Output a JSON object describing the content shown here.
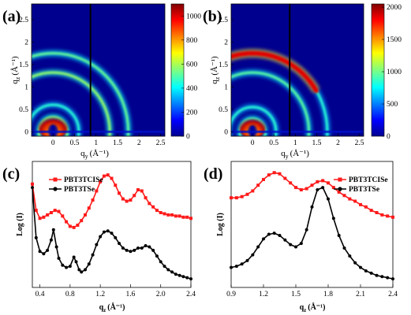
{
  "colors": {
    "red_series": "#ff1a1a",
    "black_series": "#000000",
    "map_background": "#00008f"
  },
  "chart_data": [
    {
      "panel": "(a)",
      "type": "heatmap",
      "xlabel": "q",
      "xlabel_sub": "y",
      "xlabel_unit": "(Å⁻¹)",
      "ylabel": "q",
      "ylabel_sub": "z",
      "ylabel_unit": "(Å⁻¹)",
      "xlim": [
        -0.5,
        2.6
      ],
      "ylim": [
        -0.1,
        2.85
      ],
      "xticks": [
        "0",
        "0.5",
        "1",
        "1.5",
        "2",
        "2.5"
      ],
      "yticks": [
        "0",
        "0.5",
        "1",
        "1.5",
        "2",
        "2.5"
      ],
      "colorbar_range": [
        0,
        1100
      ],
      "colorbar_ticks": [
        "0",
        "200",
        "400",
        "600",
        "800",
        "1000"
      ],
      "colormap": "jet",
      "detector_gap_qy": 0.87,
      "features": [
        {
          "kind": "ring",
          "q": 0.33,
          "intensity": 0.45
        },
        {
          "kind": "ring",
          "q": 0.6,
          "intensity": 0.3
        },
        {
          "kind": "ring",
          "q": 1.32,
          "intensity": 0.5
        },
        {
          "kind": "ring",
          "q": 1.75,
          "intensity": 0.42
        },
        {
          "kind": "lobe",
          "q": 0.33,
          "intensity": 1.0
        }
      ]
    },
    {
      "panel": "(b)",
      "type": "heatmap",
      "xlabel": "q",
      "xlabel_sub": "y",
      "xlabel_unit": "(Å⁻¹)",
      "ylabel": "q",
      "ylabel_sub": "z",
      "ylabel_unit": "(Å⁻¹)",
      "xlim": [
        -0.5,
        2.6
      ],
      "ylim": [
        -0.1,
        2.85
      ],
      "xticks": [
        "0",
        "0.5",
        "1",
        "1.5",
        "2",
        "2.5"
      ],
      "yticks": [
        "0",
        "0.5",
        "1",
        "1.5",
        "2",
        "2.5"
      ],
      "colorbar_range": [
        0,
        2050
      ],
      "colorbar_ticks": [
        "0",
        "500",
        "1000",
        "1500",
        "2000"
      ],
      "colormap": "jet",
      "detector_gap_qy": 0.87,
      "features": [
        {
          "kind": "ring",
          "q": 0.3,
          "intensity": 0.35
        },
        {
          "kind": "ring",
          "q": 0.55,
          "intensity": 0.3
        },
        {
          "kind": "ring",
          "q": 1.32,
          "intensity": 0.4
        },
        {
          "kind": "ring",
          "q": 1.75,
          "intensity": 0.3
        },
        {
          "kind": "lobe",
          "q": 0.3,
          "intensity": 1.0
        },
        {
          "kind": "arc",
          "q": 1.75,
          "intensity": 1.0
        }
      ]
    },
    {
      "panel": "(c)",
      "type": "line",
      "xlabel": "q",
      "xlabel_sub": "z",
      "xlabel_unit": "(Å⁻¹)",
      "ylabel": "Log (I)",
      "xlim": [
        0.3,
        2.4
      ],
      "ylim": [
        0,
        1
      ],
      "xticks": [
        "0.4",
        "0.8",
        "1.2",
        "1.6",
        "2.0",
        "2.4"
      ],
      "legend": "top-left",
      "series": [
        {
          "name": "PBT3TCISe",
          "color": "red",
          "x": [
            0.3,
            0.35,
            0.4,
            0.45,
            0.5,
            0.55,
            0.6,
            0.65,
            0.7,
            0.75,
            0.8,
            0.85,
            0.9,
            0.95,
            1.0,
            1.05,
            1.1,
            1.15,
            1.2,
            1.25,
            1.3,
            1.35,
            1.4,
            1.45,
            1.5,
            1.55,
            1.6,
            1.65,
            1.7,
            1.75,
            1.8,
            1.85,
            1.9,
            1.95,
            2.0,
            2.05,
            2.1,
            2.15,
            2.2,
            2.25,
            2.3,
            2.35,
            2.4
          ],
          "y": [
            0.85,
            0.62,
            0.55,
            0.56,
            0.58,
            0.6,
            0.62,
            0.61,
            0.57,
            0.52,
            0.48,
            0.47,
            0.49,
            0.53,
            0.58,
            0.64,
            0.71,
            0.79,
            0.87,
            0.92,
            0.93,
            0.9,
            0.84,
            0.77,
            0.72,
            0.7,
            0.71,
            0.75,
            0.8,
            0.79,
            0.73,
            0.68,
            0.65,
            0.62,
            0.6,
            0.59,
            0.58,
            0.58,
            0.57,
            0.57,
            0.56,
            0.56,
            0.55
          ]
        },
        {
          "name": "PBT3TSe",
          "color": "black",
          "x": [
            0.3,
            0.35,
            0.4,
            0.45,
            0.5,
            0.55,
            0.58,
            0.62,
            0.65,
            0.7,
            0.75,
            0.8,
            0.85,
            0.88,
            0.92,
            0.95,
            1.0,
            1.05,
            1.1,
            1.15,
            1.2,
            1.25,
            1.3,
            1.35,
            1.4,
            1.45,
            1.5,
            1.55,
            1.6,
            1.65,
            1.7,
            1.75,
            1.8,
            1.85,
            1.9,
            1.95,
            2.0,
            2.05,
            2.1,
            2.15,
            2.2,
            2.25,
            2.3,
            2.35,
            2.4
          ],
          "y": [
            0.82,
            0.38,
            0.26,
            0.24,
            0.27,
            0.36,
            0.45,
            0.3,
            0.2,
            0.14,
            0.12,
            0.13,
            0.21,
            0.17,
            0.1,
            0.08,
            0.1,
            0.15,
            0.23,
            0.32,
            0.39,
            0.43,
            0.44,
            0.42,
            0.38,
            0.33,
            0.29,
            0.27,
            0.26,
            0.27,
            0.29,
            0.29,
            0.31,
            0.3,
            0.27,
            0.22,
            0.17,
            0.13,
            0.1,
            0.08,
            0.06,
            0.05,
            0.04,
            0.03,
            0.02
          ]
        }
      ]
    },
    {
      "panel": "(d)",
      "type": "line",
      "xlabel": "q",
      "xlabel_sub": "z",
      "xlabel_unit": "(Å⁻¹)",
      "ylabel": "Log (I)",
      "xlim": [
        0.9,
        2.4
      ],
      "ylim": [
        0,
        1
      ],
      "xticks": [
        "0.9",
        "1.2",
        "1.5",
        "1.8",
        "2.1",
        "2.4"
      ],
      "legend": "top-right",
      "series": [
        {
          "name": "PBT3TCISe",
          "color": "red",
          "x": [
            0.9,
            0.95,
            1.0,
            1.05,
            1.1,
            1.15,
            1.2,
            1.25,
            1.3,
            1.35,
            1.4,
            1.45,
            1.5,
            1.55,
            1.6,
            1.65,
            1.7,
            1.75,
            1.8,
            1.85,
            1.9,
            1.95,
            2.0,
            2.05,
            2.1,
            2.15,
            2.2,
            2.25,
            2.3,
            2.35,
            2.4
          ],
          "y": [
            0.73,
            0.73,
            0.74,
            0.76,
            0.79,
            0.84,
            0.89,
            0.93,
            0.95,
            0.94,
            0.9,
            0.86,
            0.82,
            0.8,
            0.81,
            0.84,
            0.87,
            0.88,
            0.86,
            0.82,
            0.78,
            0.75,
            0.72,
            0.7,
            0.67,
            0.65,
            0.62,
            0.6,
            0.58,
            0.57,
            0.56
          ]
        },
        {
          "name": "PBT3TSe",
          "color": "black",
          "x": [
            0.9,
            0.95,
            1.0,
            1.05,
            1.1,
            1.15,
            1.2,
            1.25,
            1.3,
            1.35,
            1.4,
            1.45,
            1.5,
            1.55,
            1.6,
            1.65,
            1.7,
            1.75,
            1.8,
            1.85,
            1.9,
            1.95,
            2.0,
            2.05,
            2.1,
            2.15,
            2.2,
            2.25,
            2.3,
            2.35,
            2.4
          ],
          "y": [
            0.12,
            0.13,
            0.15,
            0.18,
            0.23,
            0.3,
            0.37,
            0.41,
            0.42,
            0.4,
            0.36,
            0.32,
            0.3,
            0.33,
            0.45,
            0.65,
            0.8,
            0.82,
            0.72,
            0.55,
            0.4,
            0.29,
            0.22,
            0.16,
            0.12,
            0.09,
            0.07,
            0.05,
            0.04,
            0.03,
            0.02
          ]
        }
      ]
    }
  ]
}
